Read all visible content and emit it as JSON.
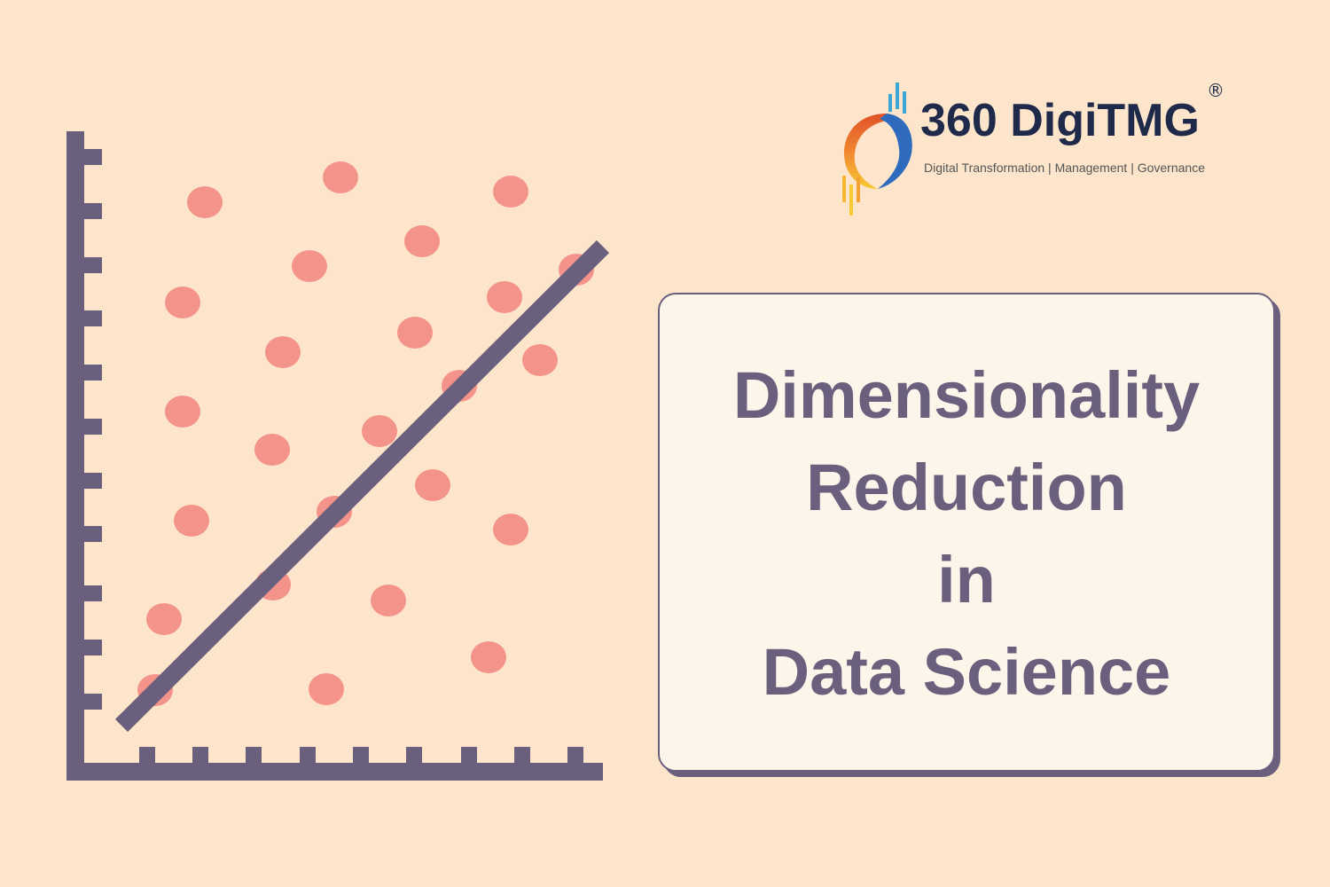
{
  "logo": {
    "brand": "360 DigiTMG",
    "tagline": "Digital Transformation | Management | Governance",
    "registered_mark": "®"
  },
  "card": {
    "lines": [
      "Dimensionality",
      "Reduction",
      "in",
      "Data Science"
    ]
  },
  "colors": {
    "background": "#fde5cc",
    "axis": "#6b5f7e",
    "dots": "#f4938a",
    "card_fill": "#fdf4ea",
    "title_text": "#6b5f7e",
    "brand_text": "#1f2a4a"
  }
}
